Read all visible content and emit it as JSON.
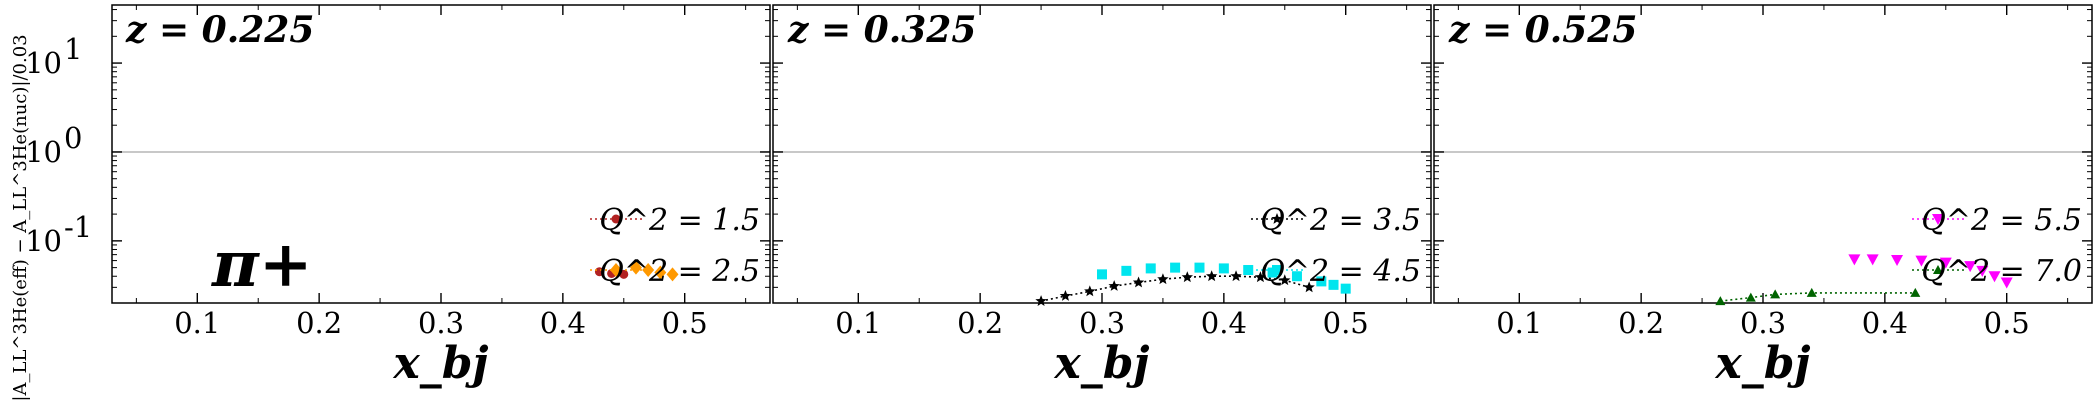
{
  "chart_data": {
    "type": "scatter",
    "yscale": "log",
    "ylim": [
      0.02,
      45
    ],
    "xlim": [
      0.03,
      0.57
    ],
    "xlabel": "x_bj",
    "ylabel": "|A_LL^3He(eff) − A_LL^3He(nuc)|/0.03",
    "x_ticks": [
      "0.1",
      "0.2",
      "0.3",
      "0.4",
      "0.5"
    ],
    "y_ticks": [
      "10^-1",
      "10^0",
      "10^1"
    ],
    "reference_line": 1.0,
    "annotation": "π+",
    "panels": [
      {
        "title": "z = 0.225",
        "legend": [
          {
            "label": "Q^2 = 1.5",
            "series": "Q2_1.5"
          },
          {
            "label": "Q^2 = 2.5",
            "series": "Q2_2.5"
          }
        ]
      },
      {
        "title": "z = 0.325",
        "legend": [
          {
            "label": "Q^2 = 3.5",
            "series": "Q2_3.5"
          },
          {
            "label": "Q^2 = 4.5",
            "series": "Q2_4.5"
          }
        ]
      },
      {
        "title": "z = 0.525",
        "legend": [
          {
            "label": "Q^2 = 5.5",
            "series": "Q2_5.5"
          },
          {
            "label": "Q^2 = 7.0",
            "series": "Q2_7.0"
          }
        ]
      }
    ],
    "series": [
      {
        "name": "Q2_1.5",
        "color": "#b22222",
        "marker": "circle",
        "x": [
          0.43,
          0.44,
          0.45
        ],
        "y": [
          0.045,
          0.043,
          0.042
        ]
      },
      {
        "name": "Q2_2.5",
        "color": "#ff9900",
        "marker": "diamond",
        "x": [
          0.46,
          0.47,
          0.48,
          0.49
        ],
        "y": [
          0.05,
          0.047,
          0.044,
          0.042
        ]
      },
      {
        "name": "Q2_3.5",
        "color": "#000000",
        "marker": "star",
        "x": [
          0.25,
          0.27,
          0.29,
          0.31,
          0.33,
          0.35,
          0.37,
          0.39,
          0.41,
          0.43,
          0.45,
          0.47
        ],
        "y": [
          0.021,
          0.024,
          0.027,
          0.031,
          0.034,
          0.037,
          0.039,
          0.04,
          0.04,
          0.039,
          0.036,
          0.03
        ]
      },
      {
        "name": "Q2_4.5",
        "color": "#00e5ee",
        "marker": "square",
        "x": [
          0.3,
          0.32,
          0.34,
          0.36,
          0.38,
          0.4,
          0.42,
          0.44,
          0.46,
          0.48,
          0.49,
          0.5
        ],
        "y": [
          0.042,
          0.046,
          0.049,
          0.05,
          0.05,
          0.049,
          0.047,
          0.044,
          0.04,
          0.035,
          0.032,
          0.029
        ]
      },
      {
        "name": "Q2_5.5",
        "color": "#ff00ff",
        "marker": "triangle-down",
        "x": [
          0.375,
          0.39,
          0.41,
          0.43,
          0.45,
          0.47,
          0.48,
          0.49,
          0.5
        ],
        "y": [
          0.062,
          0.062,
          0.061,
          0.06,
          0.057,
          0.052,
          0.046,
          0.04,
          0.034
        ]
      },
      {
        "name": "Q2_7.0",
        "color": "#006400",
        "marker": "triangle-up",
        "x": [
          0.265,
          0.29,
          0.31,
          0.34,
          0.425
        ],
        "y": [
          0.021,
          0.023,
          0.025,
          0.026,
          0.026
        ]
      }
    ]
  }
}
